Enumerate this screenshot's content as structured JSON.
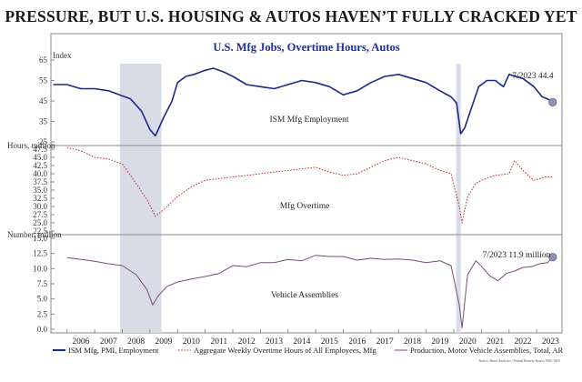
{
  "page": {
    "banner": "PRESSURE, BUT U.S. HOUSING & AUTOS HAVEN’T FULLY CRACKED YET"
  },
  "colors": {
    "ism": "#1a2a8a",
    "overtime": "#c0302a",
    "assemblies": "#7a4a7a",
    "recession": "#d9dce6",
    "frame": "#8a8a8a",
    "marker": "#8a96b4",
    "title": "#1f2f9a"
  },
  "chart_data": {
    "type": "line",
    "title": "U.S. Mfg Jobs, Overtime Hours, Autos",
    "x_tick_labels": [
      "2006",
      "2007",
      "2008",
      "2009",
      "2010",
      "2011",
      "2012",
      "2013",
      "2014",
      "2015",
      "2016",
      "2017",
      "2018",
      "2019",
      "2020",
      "2021",
      "2022",
      "2023"
    ],
    "xlim": [
      "2005-06",
      "2023-12"
    ],
    "recessions": [
      [
        "2007-12",
        "2009-06"
      ],
      [
        "2020-02",
        "2020-04"
      ]
    ],
    "legend": [
      "ISM Mfg, PMI, Employment",
      "Aggregate Weekly Overtime Hours of All Employees, Mfg",
      "Production, Motor Vehicle Assemblies, Total, AR"
    ],
    "source": "Source: Haver Analytics / Federal Reserve Board / ISM / BLS",
    "panels": [
      {
        "name": "ISM Mfg Employment",
        "ylabel": "Index",
        "ylim": [
          25,
          65
        ],
        "yticks": [
          25,
          35,
          45,
          55,
          65
        ],
        "ytick_labels": [
          "25",
          "35",
          "45",
          "55",
          "65"
        ],
        "style": "solid",
        "annotation": "7/2023 44.4",
        "last_value": 44.4,
        "x": [
          2005.5,
          2006.0,
          2006.5,
          2007.0,
          2007.5,
          2007.9,
          2008.3,
          2008.7,
          2009.0,
          2009.2,
          2009.5,
          2009.8,
          2010.0,
          2010.3,
          2010.6,
          2011.0,
          2011.3,
          2011.7,
          2012.0,
          2012.5,
          2013.0,
          2013.5,
          2014.0,
          2014.5,
          2015.0,
          2015.5,
          2016.0,
          2016.5,
          2017.0,
          2017.5,
          2018.0,
          2018.5,
          2019.0,
          2019.5,
          2019.9,
          2020.1,
          2020.25,
          2020.4,
          2020.6,
          2020.9,
          2021.2,
          2021.5,
          2021.8,
          2022.0,
          2022.5,
          2022.9,
          2023.2,
          2023.4,
          2023.58
        ],
        "y": [
          53,
          53,
          51,
          51,
          50,
          48,
          46,
          40,
          31,
          28,
          37,
          45,
          54,
          57,
          58,
          60,
          61,
          59,
          57,
          53,
          52,
          51,
          53,
          55,
          54,
          52,
          48,
          50,
          54,
          57,
          58,
          56,
          54,
          50,
          47,
          44,
          29,
          32,
          40,
          52,
          55,
          55,
          52,
          58,
          56,
          52,
          47,
          46,
          44.4
        ]
      },
      {
        "name": "Mfg Overtime",
        "ylabel": "Hours, million",
        "ylim": [
          22.5,
          47.5
        ],
        "yticks": [
          22.5,
          25,
          27.5,
          30,
          32.5,
          35,
          37.5,
          40,
          42.5,
          45,
          47.5
        ],
        "ytick_labels": [
          "22.5",
          "25.0",
          "27.5",
          "30.0",
          "32.5",
          "35.0",
          "37.5",
          "40.0",
          "42.5",
          "45.0",
          "47.5"
        ],
        "style": "dotted",
        "x": [
          2006.0,
          2006.5,
          2007.0,
          2007.5,
          2008.0,
          2008.5,
          2008.9,
          2009.2,
          2009.5,
          2010.0,
          2010.5,
          2011.0,
          2012.0,
          2013.0,
          2014.0,
          2015.0,
          2015.5,
          2016.0,
          2016.5,
          2017.0,
          2017.5,
          2018.0,
          2018.5,
          2019.0,
          2019.5,
          2019.9,
          2020.2,
          2020.3,
          2020.5,
          2020.8,
          2021.0,
          2021.5,
          2022.0,
          2022.2,
          2022.5,
          2022.9,
          2023.3,
          2023.58
        ],
        "y": [
          48,
          47,
          45,
          44.5,
          43,
          37,
          32,
          27,
          29,
          33,
          36,
          38,
          39,
          40,
          41,
          42,
          40.5,
          39.5,
          40,
          42,
          44,
          45,
          44,
          43,
          41,
          40,
          30,
          25,
          33,
          37,
          38,
          39.5,
          40,
          44,
          41,
          38,
          39,
          39
        ]
      },
      {
        "name": "Vehicle Assemblies",
        "ylabel": "Number, million",
        "ylim": [
          0,
          15
        ],
        "yticks": [
          0,
          2.5,
          5,
          7.5,
          10,
          12.5,
          15
        ],
        "ytick_labels": [
          "0.0",
          "2.5",
          "5.0",
          "7.5",
          "10.0",
          "12.5",
          "15.0"
        ],
        "style": "solid",
        "annotation": "7/2023 11.9 million",
        "last_value": 11.9,
        "x": [
          2006.0,
          2006.5,
          2007.0,
          2007.5,
          2008.0,
          2008.5,
          2008.9,
          2009.1,
          2009.3,
          2009.6,
          2010.0,
          2010.5,
          2011.0,
          2011.5,
          2012.0,
          2012.5,
          2013.0,
          2013.5,
          2014.0,
          2014.5,
          2015.0,
          2015.5,
          2016.0,
          2016.5,
          2017.0,
          2017.5,
          2018.0,
          2018.5,
          2019.0,
          2019.5,
          2019.9,
          2020.2,
          2020.3,
          2020.5,
          2020.8,
          2021.0,
          2021.3,
          2021.6,
          2021.9,
          2022.2,
          2022.5,
          2022.8,
          2023.1,
          2023.4,
          2023.58
        ],
        "y": [
          11.8,
          11.5,
          11.2,
          10.8,
          10.5,
          9,
          6.5,
          4,
          5.5,
          7,
          7.8,
          8.3,
          8.7,
          9.2,
          10.5,
          10.3,
          11,
          11,
          11.5,
          11.3,
          12.2,
          12,
          12,
          11.4,
          11.7,
          11.5,
          11.6,
          11.4,
          11,
          11.3,
          10.5,
          4,
          0.2,
          9,
          11.3,
          10.4,
          8.8,
          8,
          9.2,
          9.6,
          10.2,
          10.3,
          10.8,
          11,
          11.9
        ]
      }
    ]
  }
}
